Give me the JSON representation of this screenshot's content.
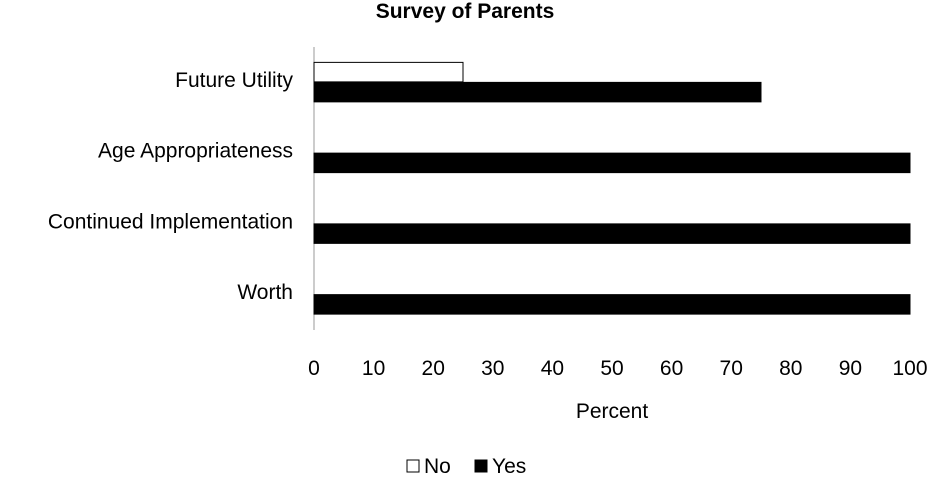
{
  "chart_data": {
    "type": "bar",
    "orientation": "horizontal",
    "title": "Survey of Parents",
    "xlabel": "Percent",
    "ylabel": "",
    "xlim": [
      0,
      100
    ],
    "xticks": [
      0,
      10,
      20,
      30,
      40,
      50,
      60,
      70,
      80,
      90,
      100
    ],
    "categories": [
      "Future Utility",
      "Age Appropriateness",
      "Continued Implementation",
      "Worth"
    ],
    "series": [
      {
        "name": "No",
        "values": [
          25,
          0,
          0,
          0
        ],
        "color": "#ffffff",
        "stroke": "#000000"
      },
      {
        "name": "Yes",
        "values": [
          75,
          100,
          100,
          100
        ],
        "color": "#000000",
        "stroke": "#000000"
      }
    ],
    "legend": {
      "position": "bottom",
      "entries": [
        "No",
        "Yes"
      ]
    },
    "grid": false
  }
}
